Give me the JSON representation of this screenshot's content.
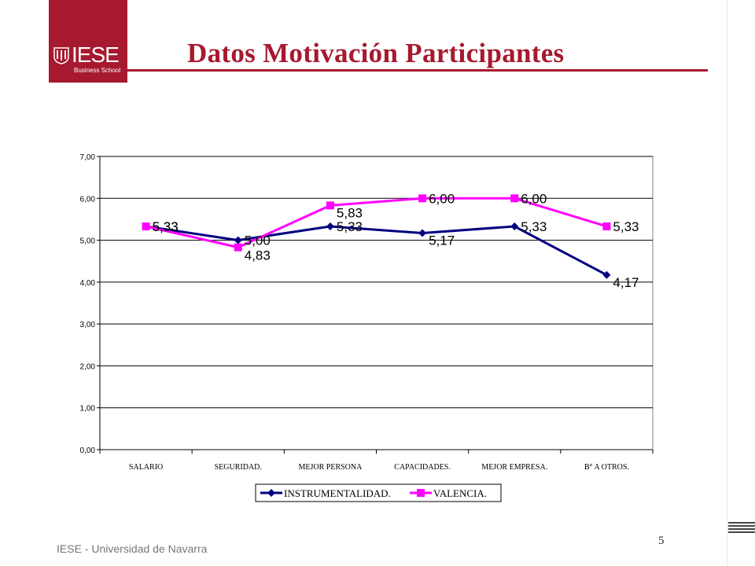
{
  "logo": {
    "brand": "IESE",
    "subtitle": "Business School",
    "crest_icon": "iese-crest-icon"
  },
  "title": "Datos Motivación Participantes",
  "footer": "IESE - Universidad de Navarra",
  "page_number": "5",
  "colors": {
    "brand": "#a6192e",
    "series1": "#000080",
    "series2": "#ff00ff"
  },
  "chart_data": {
    "type": "line",
    "categories": [
      "SALARIO",
      "SEGURIDAD.",
      "MEJOR PERSONA",
      "CAPACIDADES.",
      "MEJOR EMPRESA.",
      "B° A OTROS."
    ],
    "series": [
      {
        "name": "INSTRUMENTALIDAD.",
        "values": [
          5.33,
          5.0,
          5.33,
          5.17,
          5.33,
          4.17
        ],
        "labels": [
          "5,33",
          "5,00",
          "5,33",
          "5,17",
          "5,33",
          "4,17"
        ],
        "color": "#000080",
        "marker": "diamond"
      },
      {
        "name": "VALENCIA.",
        "values": [
          5.33,
          4.83,
          5.83,
          6.0,
          6.0,
          5.33
        ],
        "labels": [
          "5,33",
          "4,83",
          "5,83",
          "6,00",
          "6,00",
          "5,33"
        ],
        "color": "#ff00ff",
        "marker": "square"
      }
    ],
    "yticks": [
      "0,00",
      "1,00",
      "2,00",
      "3,00",
      "4,00",
      "5,00",
      "6,00",
      "7,00"
    ],
    "ylim": [
      0,
      7
    ],
    "grid": true,
    "legend_position": "bottom"
  }
}
